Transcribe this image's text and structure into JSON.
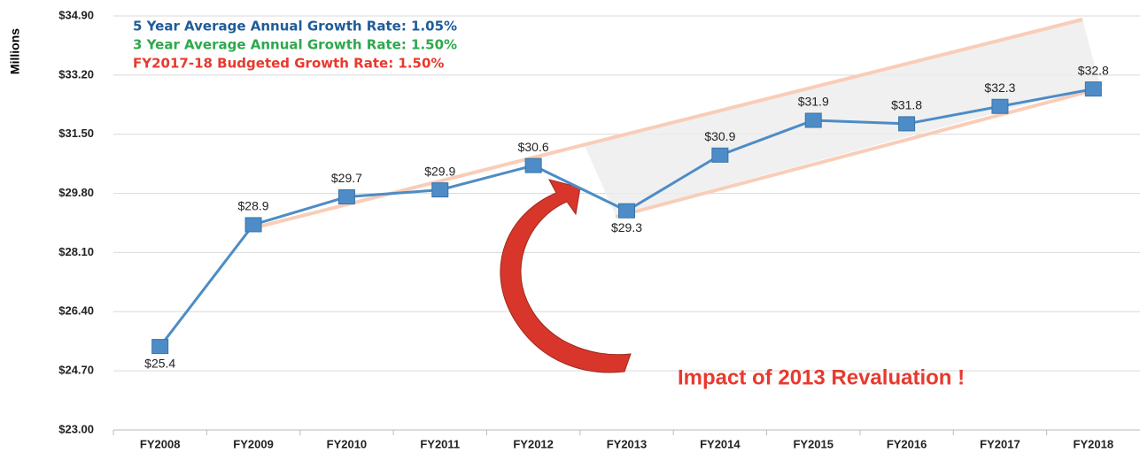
{
  "chart_data": {
    "type": "line",
    "y_label": "Millions",
    "annotations": [
      {
        "text": "5 Year Average Annual Growth Rate:  1.05%",
        "color": "#1f5c99"
      },
      {
        "text": "3 Year Average Annual Growth Rate:  1.50%",
        "color": "#2ea84e"
      },
      {
        "text": "FY2017-18 Budgeted Growth Rate:  1.50%",
        "color": "#e8392e"
      }
    ],
    "callout": {
      "text": "Impact of 2013 Revaluation !",
      "color": "#e8392e"
    },
    "categories": [
      "FY2008",
      "FY2009",
      "FY2010",
      "FY2011",
      "FY2012",
      "FY2013",
      "FY2014",
      "FY2015",
      "FY2016",
      "FY2017",
      "FY2018"
    ],
    "values": [
      25.4,
      28.9,
      29.7,
      29.9,
      30.6,
      29.3,
      30.9,
      31.9,
      31.8,
      32.3,
      32.8
    ],
    "value_labels": [
      "$25.4",
      "$28.9",
      "$29.7",
      "$29.9",
      "$30.6",
      "$29.3",
      "$30.9",
      "$31.9",
      "$31.8",
      "$32.3",
      "$32.8"
    ],
    "color": "#4d8cc6",
    "ylim": [
      23.0,
      34.9
    ],
    "yticks": [
      {
        "value": 23.0,
        "label": "$23.00"
      },
      {
        "value": 24.7,
        "label": "$24.70"
      },
      {
        "value": 26.4,
        "label": "$26.40"
      },
      {
        "value": 28.1,
        "label": "$28.10"
      },
      {
        "value": 29.8,
        "label": "$29.80"
      },
      {
        "value": 31.5,
        "label": "$31.50"
      },
      {
        "value": 33.2,
        "label": "$33.20"
      },
      {
        "value": 34.9,
        "label": "$34.90"
      }
    ],
    "grid": true
  }
}
